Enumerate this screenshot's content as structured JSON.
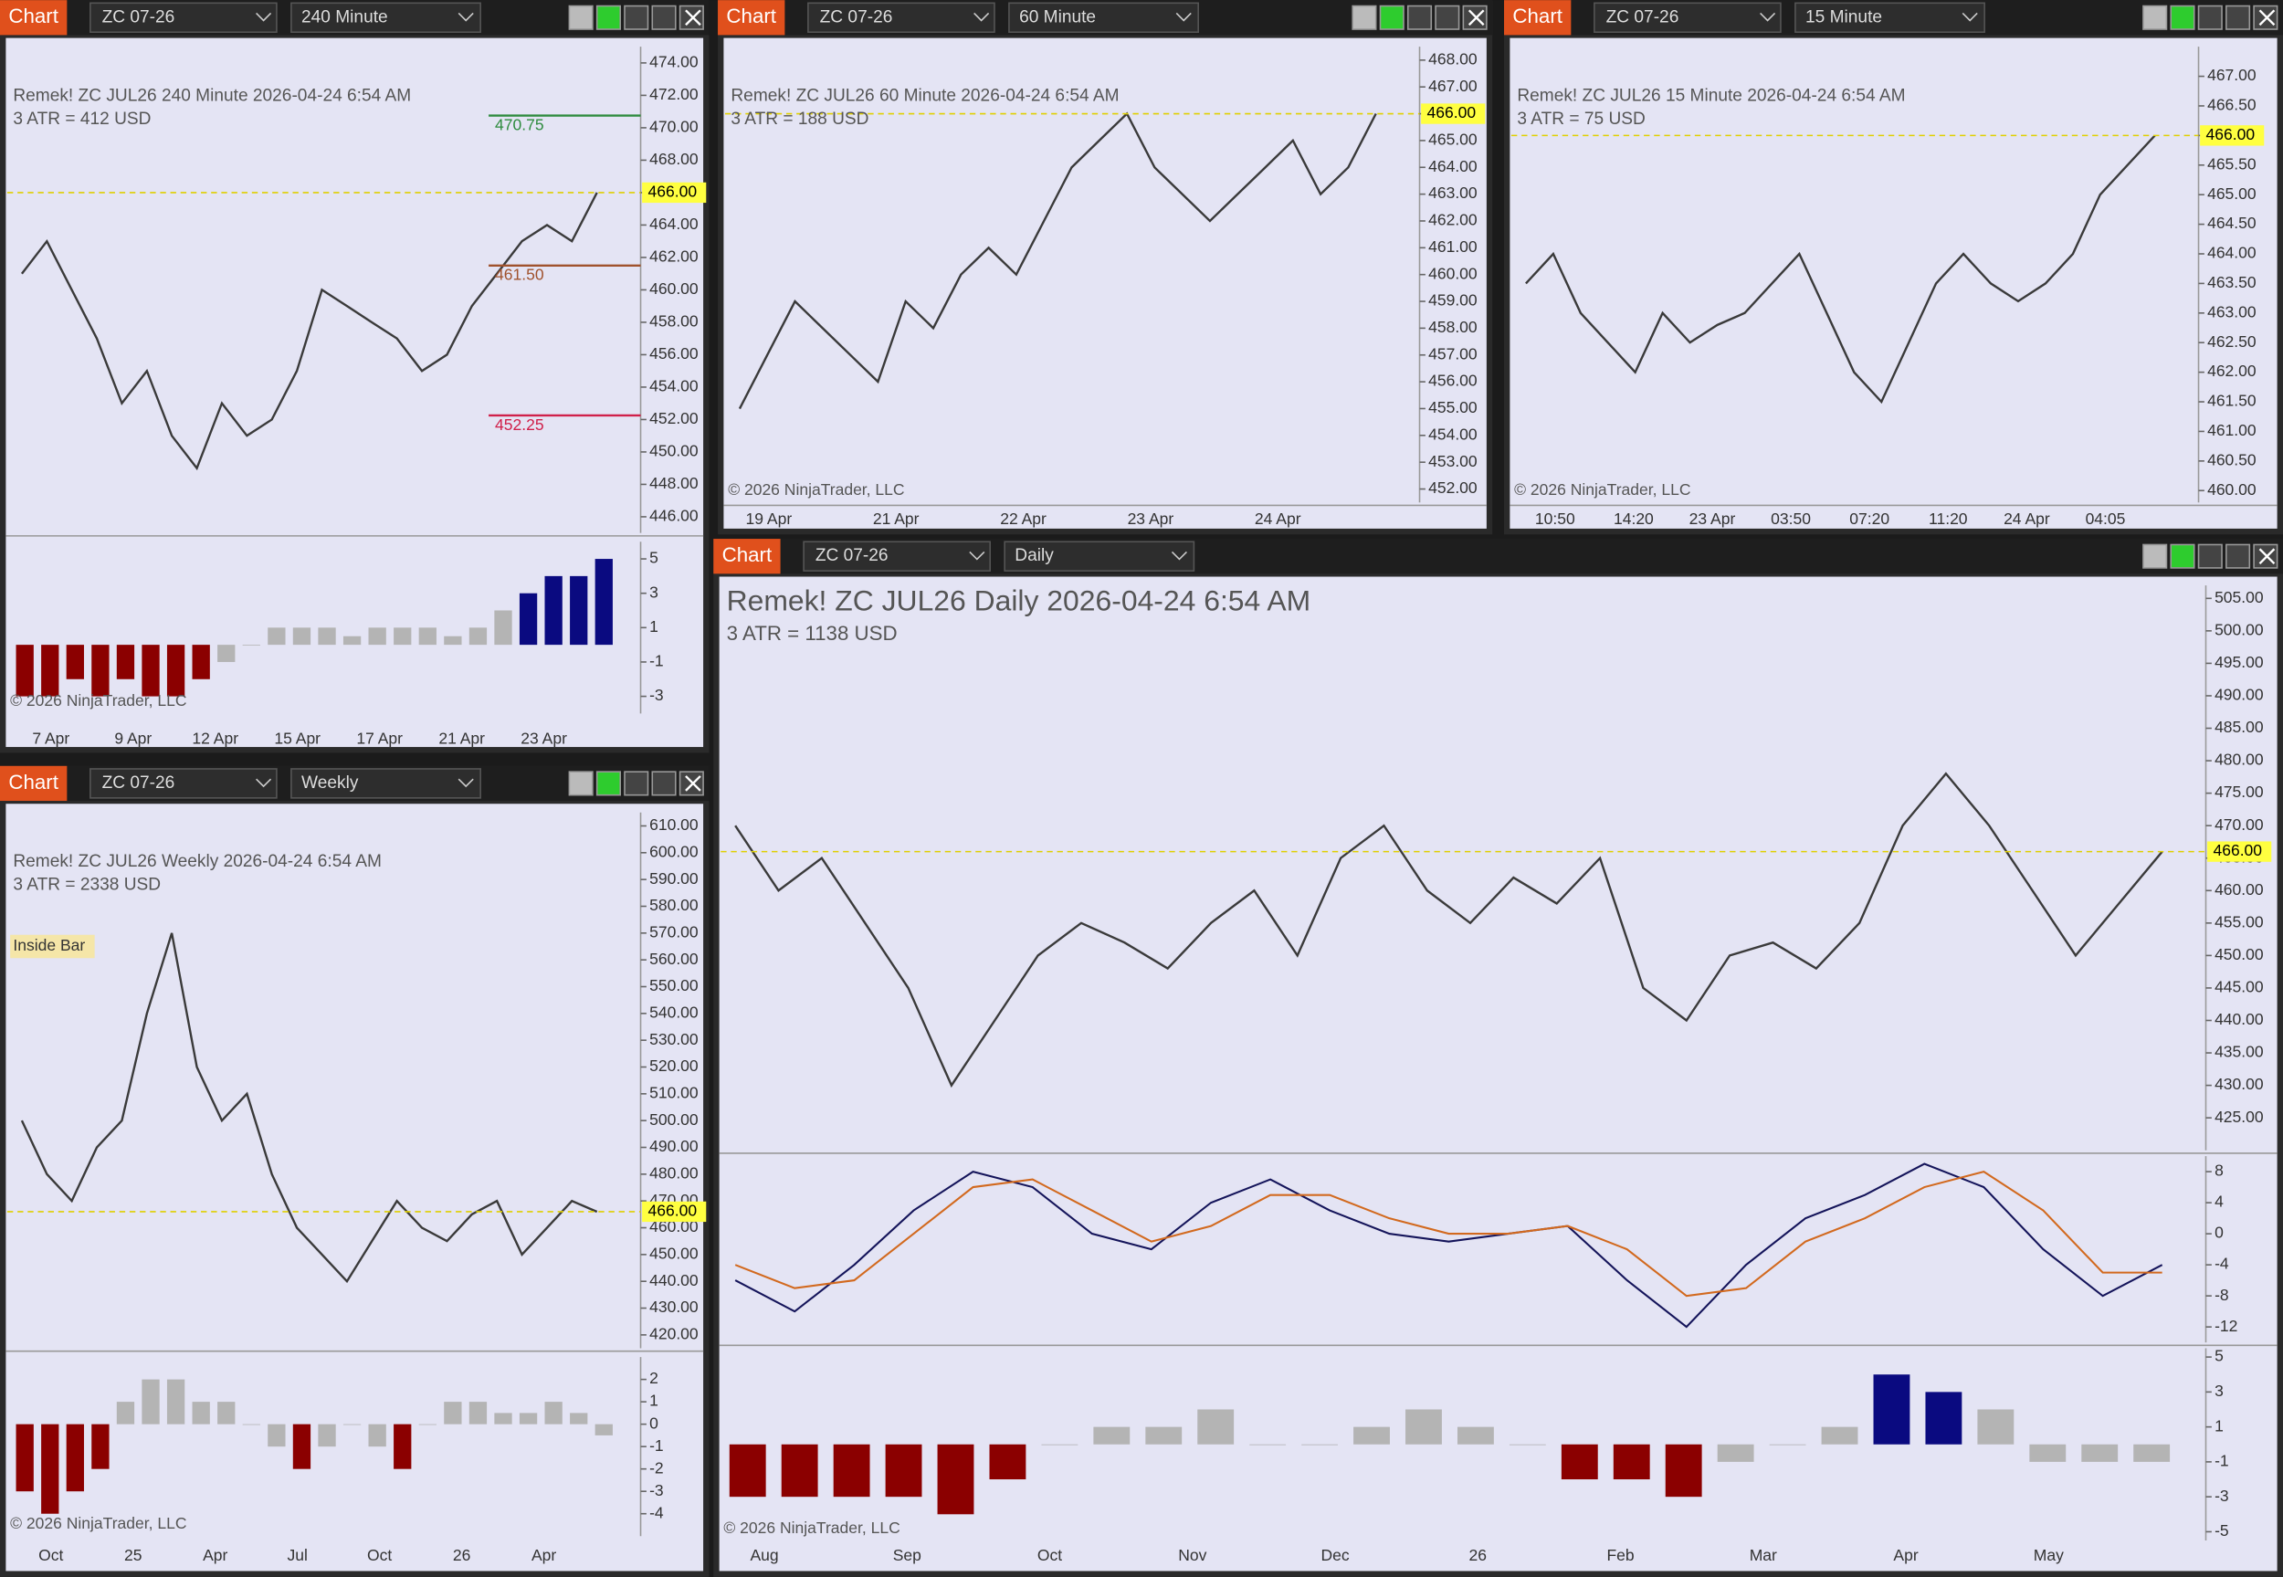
{
  "windows": [
    {
      "tab": "Chart",
      "instrument": "ZC 07-26",
      "interval": "240 Minute",
      "info": "Remek!  ZC JUL26  240 Minute  2026-04-24 6:54 AM",
      "atr": "3 ATR = 412 USD",
      "copyright": "© 2026 NinjaTrader, LLC",
      "price": {
        "ylim": [
          445,
          475
        ],
        "yticks": [
          {
            "value": 446,
            "label": "446.00"
          },
          {
            "value": 448,
            "label": "448.00"
          },
          {
            "value": 450,
            "label": "450.00"
          },
          {
            "value": 452,
            "label": "452.00"
          },
          {
            "value": 454,
            "label": "454.00"
          },
          {
            "value": 456,
            "label": "456.00"
          },
          {
            "value": 458,
            "label": "458.00"
          },
          {
            "value": 460,
            "label": "460.00"
          },
          {
            "value": 462,
            "label": "462.00"
          },
          {
            "value": 464,
            "label": "464.00"
          },
          {
            "value": 466,
            "label": "466.00"
          },
          {
            "value": 468,
            "label": "468.00"
          },
          {
            "value": 470,
            "label": "470.00"
          },
          {
            "value": 472,
            "label": "472.00"
          },
          {
            "value": 474,
            "label": "474.00"
          }
        ],
        "close": [
          461,
          463,
          460,
          457,
          453,
          455,
          451,
          449,
          453,
          451,
          452,
          455,
          460,
          459,
          458,
          457,
          455,
          456,
          459,
          461,
          463,
          464,
          463,
          466
        ],
        "last": {
          "value": 466,
          "label": "466.00"
        }
      },
      "annotations": [
        {
          "value": 470.75,
          "label": "470.75",
          "color": "#2e8b3e"
        },
        {
          "value": 461.5,
          "label": "461.50",
          "color": "#a0522d"
        },
        {
          "value": 452.25,
          "label": "452.25",
          "color": "#d0204a"
        }
      ],
      "indicator": {
        "ylim": [
          -4,
          6
        ],
        "yticks": [
          -3,
          -1,
          1,
          3,
          5
        ],
        "values": [
          -3,
          -3,
          -2,
          -3,
          -2,
          -3,
          -3,
          -2,
          -1,
          0,
          1,
          1,
          1,
          0.5,
          1,
          1,
          1,
          0.5,
          1,
          2,
          3,
          4,
          4,
          5
        ]
      },
      "x_labels": [
        "7 Apr",
        "9 Apr",
        "12 Apr",
        "15 Apr",
        "17 Apr",
        "21 Apr",
        "23 Apr"
      ]
    },
    {
      "tab": "Chart",
      "instrument": "ZC 07-26",
      "interval": "60 Minute",
      "info": "Remek!  ZC JUL26  60 Minute  2026-04-24 6:54 AM",
      "atr": "3 ATR = 188 USD",
      "copyright": "© 2026 NinjaTrader, LLC",
      "price": {
        "ylim": [
          451.5,
          468.5
        ],
        "yticks": [
          {
            "value": 452,
            "label": "452.00"
          },
          {
            "value": 453,
            "label": "453.00"
          },
          {
            "value": 454,
            "label": "454.00"
          },
          {
            "value": 455,
            "label": "455.00"
          },
          {
            "value": 456,
            "label": "456.00"
          },
          {
            "value": 457,
            "label": "457.00"
          },
          {
            "value": 458,
            "label": "458.00"
          },
          {
            "value": 459,
            "label": "459.00"
          },
          {
            "value": 460,
            "label": "460.00"
          },
          {
            "value": 461,
            "label": "461.00"
          },
          {
            "value": 462,
            "label": "462.00"
          },
          {
            "value": 463,
            "label": "463.00"
          },
          {
            "value": 464,
            "label": "464.00"
          },
          {
            "value": 465,
            "label": "465.00"
          },
          {
            "value": 466,
            "label": "466.00"
          },
          {
            "value": 467,
            "label": "467.00"
          },
          {
            "value": 468,
            "label": "468.00"
          }
        ],
        "close": [
          455,
          457,
          459,
          458,
          457,
          456,
          459,
          458,
          460,
          461,
          460,
          462,
          464,
          465,
          466,
          464,
          463,
          462,
          463,
          464,
          465,
          463,
          464,
          466
        ],
        "last": {
          "value": 466,
          "label": "466.00"
        }
      },
      "x_labels": [
        "19 Apr",
        "21 Apr",
        "22 Apr",
        "23 Apr",
        "24 Apr"
      ]
    },
    {
      "tab": "Chart",
      "instrument": "ZC 07-26",
      "interval": "15 Minute",
      "info": "Remek!  ZC JUL26  15 Minute  2026-04-24 6:54 AM",
      "atr": "3 ATR = 75 USD",
      "copyright": "© 2026 NinjaTrader, LLC",
      "price": {
        "ylim": [
          459.8,
          467.5
        ],
        "yticks": [
          {
            "value": 460,
            "label": "460.00"
          },
          {
            "value": 460.5,
            "label": "460.50"
          },
          {
            "value": 461,
            "label": "461.00"
          },
          {
            "value": 461.5,
            "label": "461.50"
          },
          {
            "value": 462,
            "label": "462.00"
          },
          {
            "value": 462.5,
            "label": "462.50"
          },
          {
            "value": 463,
            "label": "463.00"
          },
          {
            "value": 463.5,
            "label": "463.50"
          },
          {
            "value": 464,
            "label": "464.00"
          },
          {
            "value": 464.5,
            "label": "464.50"
          },
          {
            "value": 465,
            "label": "465.00"
          },
          {
            "value": 465.5,
            "label": "465.50"
          },
          {
            "value": 466,
            "label": "466.00"
          },
          {
            "value": 466.5,
            "label": "466.50"
          },
          {
            "value": 467,
            "label": "467.00"
          }
        ],
        "close": [
          463.5,
          464,
          463,
          462.5,
          462,
          463,
          462.5,
          462.8,
          463,
          463.5,
          464,
          463,
          462,
          461.5,
          462.5,
          463.5,
          464,
          463.5,
          463.2,
          463.5,
          464,
          465,
          465.5,
          466
        ],
        "last": {
          "value": 466,
          "label": "466.00"
        }
      },
      "x_labels": [
        "10:50",
        "14:20",
        "23 Apr",
        "03:50",
        "07:20",
        "11:20",
        "24 Apr",
        "04:05"
      ]
    },
    {
      "tab": "Chart",
      "instrument": "ZC 07-26",
      "interval": "Weekly",
      "info": "Remek!  ZC JUL26  Weekly  2026-04-24 6:54 AM",
      "atr": "3 ATR = 2338 USD",
      "copyright": "© 2026 NinjaTrader, LLC",
      "note": "Inside Bar",
      "price": {
        "ylim": [
          415,
          615
        ],
        "yticks": [
          {
            "value": 420,
            "label": "420.00"
          },
          {
            "value": 430,
            "label": "430.00"
          },
          {
            "value": 440,
            "label": "440.00"
          },
          {
            "value": 450,
            "label": "450.00"
          },
          {
            "value": 460,
            "label": "460.00"
          },
          {
            "value": 470,
            "label": "470.00"
          },
          {
            "value": 480,
            "label": "480.00"
          },
          {
            "value": 490,
            "label": "490.00"
          },
          {
            "value": 500,
            "label": "500.00"
          },
          {
            "value": 510,
            "label": "510.00"
          },
          {
            "value": 520,
            "label": "520.00"
          },
          {
            "value": 530,
            "label": "530.00"
          },
          {
            "value": 540,
            "label": "540.00"
          },
          {
            "value": 550,
            "label": "550.00"
          },
          {
            "value": 560,
            "label": "560.00"
          },
          {
            "value": 570,
            "label": "570.00"
          },
          {
            "value": 580,
            "label": "580.00"
          },
          {
            "value": 590,
            "label": "590.00"
          },
          {
            "value": 600,
            "label": "600.00"
          },
          {
            "value": 610,
            "label": "610.00"
          }
        ],
        "close": [
          500,
          480,
          470,
          490,
          500,
          540,
          570,
          520,
          500,
          510,
          480,
          460,
          450,
          440,
          455,
          470,
          460,
          455,
          465,
          470,
          450,
          460,
          470,
          466
        ],
        "last": {
          "value": 466,
          "label": "466.00"
        }
      },
      "indicator": {
        "ylim": [
          -5,
          3
        ],
        "yticks": [
          -4,
          -3,
          -2,
          -1,
          0,
          1,
          2
        ],
        "values": [
          -3,
          -4,
          -3,
          -2,
          1,
          2,
          2,
          1,
          1,
          0,
          -1,
          -2,
          -1,
          0,
          -1,
          -2,
          0,
          1,
          1,
          0.5,
          0.5,
          1,
          0.5,
          -0.5
        ]
      },
      "x_labels": [
        "Oct",
        "25",
        "Apr",
        "Jul",
        "Oct",
        "26",
        "Apr"
      ]
    },
    {
      "tab": "Chart",
      "instrument": "ZC 07-26",
      "interval": "Daily",
      "info": "Remek!  ZC JUL26  Daily  2026-04-24 6:54 AM",
      "atr": "3 ATR = 1138 USD",
      "copyright": "© 2026 NinjaTrader, LLC",
      "price": {
        "ylim": [
          420,
          507
        ],
        "yticks": [
          {
            "value": 425,
            "label": "425.00"
          },
          {
            "value": 430,
            "label": "430.00"
          },
          {
            "value": 435,
            "label": "435.00"
          },
          {
            "value": 440,
            "label": "440.00"
          },
          {
            "value": 445,
            "label": "445.00"
          },
          {
            "value": 450,
            "label": "450.00"
          },
          {
            "value": 455,
            "label": "455.00"
          },
          {
            "value": 460,
            "label": "460.00"
          },
          {
            "value": 465,
            "label": "465.00"
          },
          {
            "value": 470,
            "label": "470.00"
          },
          {
            "value": 475,
            "label": "475.00"
          },
          {
            "value": 480,
            "label": "480.00"
          },
          {
            "value": 485,
            "label": "485.00"
          },
          {
            "value": 490,
            "label": "490.00"
          },
          {
            "value": 495,
            "label": "495.00"
          },
          {
            "value": 500,
            "label": "500.00"
          },
          {
            "value": 505,
            "label": "505.00"
          }
        ],
        "close": [
          470,
          460,
          465,
          455,
          445,
          430,
          440,
          450,
          455,
          452,
          448,
          455,
          460,
          450,
          465,
          470,
          460,
          455,
          462,
          458,
          465,
          445,
          440,
          450,
          452,
          448,
          455,
          470,
          478,
          470,
          460,
          450,
          458,
          466
        ],
        "last": {
          "value": 466,
          "label": "466.00"
        }
      },
      "oscillator": {
        "ylim": [
          -14,
          10
        ],
        "yticks": [
          -12,
          -8,
          -4,
          0,
          4,
          8
        ],
        "series": [
          {
            "color": "#14145a",
            "values": [
              -6,
              -10,
              -4,
              3,
              8,
              6,
              0,
              -2,
              4,
              7,
              3,
              0,
              -1,
              0,
              1,
              -6,
              -12,
              -4,
              2,
              5,
              9,
              6,
              -2,
              -8,
              -4
            ]
          },
          {
            "color": "#d2691e",
            "values": [
              -4,
              -7,
              -6,
              0,
              6,
              7,
              3,
              -1,
              1,
              5,
              5,
              2,
              0,
              0,
              1,
              -2,
              -8,
              -7,
              -1,
              2,
              6,
              8,
              3,
              -5,
              -5
            ]
          }
        ]
      },
      "indicator": {
        "ylim": [
          -5.5,
          5.5
        ],
        "yticks": [
          -5,
          -3,
          -1,
          1,
          3,
          5
        ],
        "values": [
          -3,
          -3,
          -3,
          -3,
          -4,
          -2,
          0,
          1,
          1,
          2,
          0,
          0,
          1,
          2,
          1,
          0,
          -2,
          -2,
          -3,
          -1,
          0,
          1,
          4,
          3,
          2,
          -1,
          -1,
          -1
        ]
      },
      "x_labels": [
        "Aug",
        "Sep",
        "Oct",
        "Nov",
        "Dec",
        "26",
        "Feb",
        "Mar",
        "Apr",
        "May"
      ]
    }
  ],
  "colors": {
    "background": "#e4e4f4",
    "price": "#3a3a3a",
    "up": "#0a0a80",
    "down": "#8b0000",
    "neutral": "#b4b4b4",
    "last": "#ffff40"
  }
}
